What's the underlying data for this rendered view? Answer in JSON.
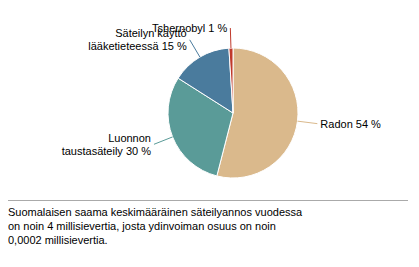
{
  "chart_data": {
    "type": "pie",
    "categories": [
      "Radon 54 %",
      "Luonnon\ntaustasäteily 30 %",
      "Säteilyn käyttö\nlääketieteessä 15 %",
      "Tshernobyl 1 %"
    ],
    "values": [
      54,
      30,
      15,
      1
    ],
    "colors": [
      "#dab98c",
      "#5a9b98",
      "#4a7b9d",
      "#c0392b"
    ],
    "annotation": "Suomalaisen saama keskimääräinen säteilyannos vuodessa\non noin 4 millisievertia, josta ydinvoiman osuus on noin\n0,0002 millisievertia."
  }
}
